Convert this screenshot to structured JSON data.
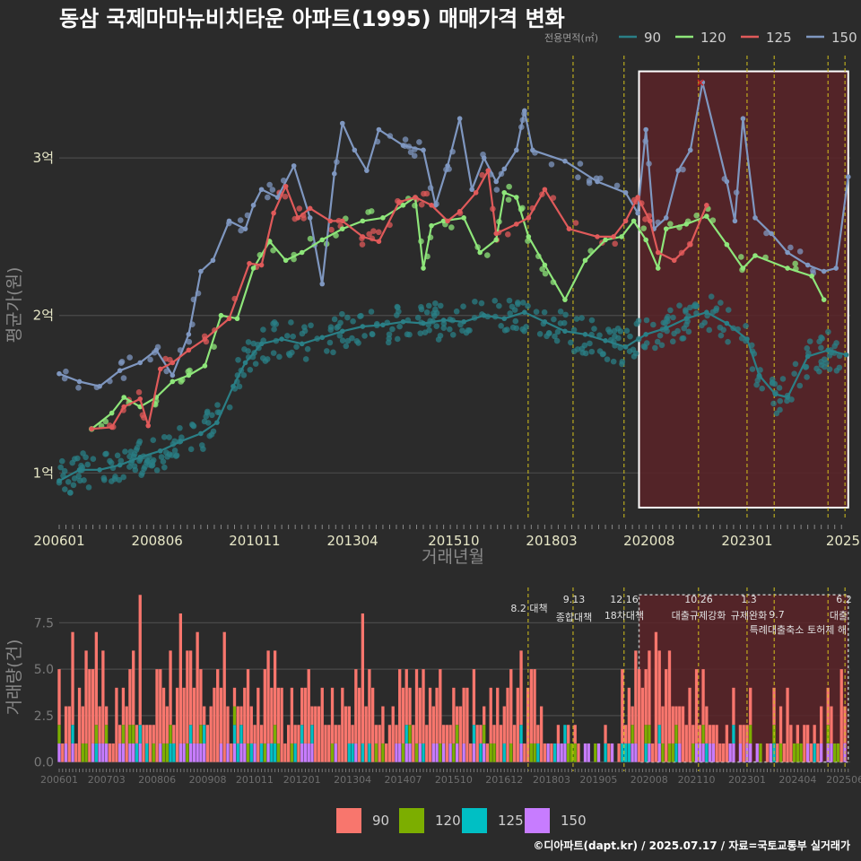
{
  "title": "동삼 국제마마뉴비치타운 아파트(1995) 매매가격 변화",
  "credit": "©디아파트(dapt.kr) / 2025.07.17 / 자료=국토교통부 실거래가",
  "colors": {
    "background": "#2b2b2b",
    "grid": "#4a4a4a",
    "policy_line": "#d4c21c",
    "highlight_fill": "#5a2328",
    "s90_line": "#2a7f86",
    "s120_line": "#8ee67a",
    "s125_line": "#e05a5a",
    "s150_line": "#7f97c0",
    "bar90": "#f8766d",
    "bar120": "#7cae00",
    "bar125": "#00bfc4",
    "bar150": "#c77cff"
  },
  "chart_data": [
    {
      "type": "line",
      "name": "price",
      "xlabel": "거래년월",
      "ylabel": "평균가(원)",
      "xlim": [
        2006.0,
        2025.55
      ],
      "ylim": [
        0.7,
        3.65
      ],
      "yticks": [
        {
          "v": 1,
          "label": "1억"
        },
        {
          "v": 2,
          "label": "2억"
        },
        {
          "v": 3,
          "label": "3억"
        }
      ],
      "xticks": [
        {
          "v": 2006.0,
          "label": "200601"
        },
        {
          "v": 2008.42,
          "label": "200806"
        },
        {
          "v": 2010.83,
          "label": "201011"
        },
        {
          "v": 2013.25,
          "label": "201304"
        },
        {
          "v": 2015.75,
          "label": "201510"
        },
        {
          "v": 2018.17,
          "label": "201803"
        },
        {
          "v": 2020.58,
          "label": "202008"
        },
        {
          "v": 2023.0,
          "label": "202301"
        },
        {
          "v": 2025.42,
          "label": "2025"
        }
      ],
      "legend_title": "전용면적(㎡)",
      "highlight": {
        "x0": 2020.33,
        "x1": 2025.5,
        "y0": 0.78,
        "y1": 3.55
      },
      "marker_x": {
        "x": 2021.85,
        "y": 3.48
      },
      "series": [
        {
          "name": "90",
          "color": "#2a7f86",
          "trend": [
            [
              2006.0,
              0.95
            ],
            [
              2006.5,
              1.02
            ],
            [
              2007.0,
              1.02
            ],
            [
              2007.5,
              1.05
            ],
            [
              2008.0,
              1.1
            ],
            [
              2008.5,
              1.14
            ],
            [
              2009.0,
              1.2
            ],
            [
              2009.5,
              1.25
            ],
            [
              2009.9,
              1.32
            ],
            [
              2010.3,
              1.55
            ],
            [
              2010.6,
              1.7
            ],
            [
              2011.0,
              1.82
            ],
            [
              2011.5,
              1.85
            ],
            [
              2012.0,
              1.82
            ],
            [
              2012.5,
              1.86
            ],
            [
              2013.0,
              1.9
            ],
            [
              2013.5,
              1.93
            ],
            [
              2014.0,
              1.94
            ],
            [
              2014.5,
              1.96
            ],
            [
              2015.0,
              1.95
            ],
            [
              2015.5,
              1.97
            ],
            [
              2016.0,
              1.96
            ],
            [
              2016.5,
              2.0
            ],
            [
              2017.0,
              1.98
            ],
            [
              2017.5,
              2.02
            ],
            [
              2018.0,
              1.96
            ],
            [
              2018.5,
              1.9
            ],
            [
              2019.0,
              1.88
            ],
            [
              2019.5,
              1.84
            ],
            [
              2020.0,
              1.8
            ],
            [
              2020.5,
              1.88
            ],
            [
              2021.0,
              1.92
            ],
            [
              2021.5,
              1.98
            ],
            [
              2022.0,
              2.02
            ],
            [
              2022.5,
              1.95
            ],
            [
              2023.0,
              1.85
            ],
            [
              2023.3,
              1.62
            ],
            [
              2023.7,
              1.5
            ],
            [
              2024.0,
              1.48
            ],
            [
              2024.5,
              1.74
            ],
            [
              2025.0,
              1.78
            ],
            [
              2025.45,
              1.75
            ]
          ]
        },
        {
          "name": "120",
          "color": "#8ee67a",
          "trend": [
            [
              2006.8,
              1.28
            ],
            [
              2007.3,
              1.38
            ],
            [
              2007.6,
              1.48
            ],
            [
              2008.0,
              1.42
            ],
            [
              2008.4,
              1.48
            ],
            [
              2008.8,
              1.58
            ],
            [
              2009.2,
              1.62
            ],
            [
              2009.6,
              1.68
            ],
            [
              2010.0,
              2.0
            ],
            [
              2010.4,
              1.98
            ],
            [
              2010.8,
              2.3
            ],
            [
              2011.2,
              2.47
            ],
            [
              2011.6,
              2.35
            ],
            [
              2012.0,
              2.4
            ],
            [
              2012.5,
              2.48
            ],
            [
              2013.0,
              2.55
            ],
            [
              2013.5,
              2.6
            ],
            [
              2014.0,
              2.62
            ],
            [
              2014.5,
              2.7
            ],
            [
              2014.8,
              2.75
            ],
            [
              2015.0,
              2.3
            ],
            [
              2015.2,
              2.57
            ],
            [
              2015.5,
              2.6
            ],
            [
              2016.0,
              2.62
            ],
            [
              2016.4,
              2.4
            ],
            [
              2016.8,
              2.48
            ],
            [
              2017.0,
              2.78
            ],
            [
              2017.3,
              2.75
            ],
            [
              2017.6,
              2.5
            ],
            [
              2018.0,
              2.32
            ],
            [
              2018.5,
              2.1
            ],
            [
              2019.0,
              2.35
            ],
            [
              2019.5,
              2.48
            ],
            [
              2019.9,
              2.5
            ],
            [
              2020.2,
              2.6
            ],
            [
              2020.5,
              2.48
            ],
            [
              2020.8,
              2.3
            ],
            [
              2021.0,
              2.55
            ],
            [
              2021.5,
              2.58
            ],
            [
              2022.0,
              2.63
            ],
            [
              2022.5,
              2.45
            ],
            [
              2022.9,
              2.3
            ],
            [
              2023.2,
              2.38
            ],
            [
              2024.0,
              2.3
            ],
            [
              2024.6,
              2.25
            ],
            [
              2024.9,
              2.1
            ]
          ]
        },
        {
          "name": "125",
          "color": "#e05a5a",
          "trend": [
            [
              2006.8,
              1.28
            ],
            [
              2007.3,
              1.29
            ],
            [
              2007.6,
              1.42
            ],
            [
              2008.0,
              1.47
            ],
            [
              2008.2,
              1.3
            ],
            [
              2008.5,
              1.66
            ],
            [
              2008.8,
              1.7
            ],
            [
              2009.2,
              1.78
            ],
            [
              2009.6,
              1.85
            ],
            [
              2010.2,
              1.98
            ],
            [
              2010.7,
              2.33
            ],
            [
              2011.0,
              2.32
            ],
            [
              2011.3,
              2.65
            ],
            [
              2011.6,
              2.82
            ],
            [
              2011.9,
              2.62
            ],
            [
              2012.2,
              2.68
            ],
            [
              2012.7,
              2.6
            ],
            [
              2013.0,
              2.6
            ],
            [
              2013.5,
              2.5
            ],
            [
              2013.9,
              2.47
            ],
            [
              2014.4,
              2.72
            ],
            [
              2014.8,
              2.75
            ],
            [
              2015.2,
              2.7
            ],
            [
              2015.6,
              2.6
            ],
            [
              2015.9,
              2.66
            ],
            [
              2016.3,
              2.78
            ],
            [
              2016.6,
              2.92
            ],
            [
              2016.8,
              2.52
            ],
            [
              2017.3,
              2.58
            ],
            [
              2017.6,
              2.62
            ],
            [
              2018.0,
              2.8
            ],
            [
              2018.6,
              2.55
            ],
            [
              2019.3,
              2.5
            ],
            [
              2019.7,
              2.5
            ],
            [
              2020.0,
              2.6
            ],
            [
              2020.3,
              2.75
            ],
            [
              2020.6,
              2.6
            ],
            [
              2020.8,
              2.4
            ],
            [
              2021.2,
              2.35
            ],
            [
              2021.6,
              2.45
            ],
            [
              2022.0,
              2.7
            ]
          ]
        },
        {
          "name": "150",
          "color": "#7f97c0",
          "trend": [
            [
              2006.0,
              1.63
            ],
            [
              2006.5,
              1.58
            ],
            [
              2007.0,
              1.55
            ],
            [
              2007.5,
              1.65
            ],
            [
              2008.0,
              1.7
            ],
            [
              2008.4,
              1.78
            ],
            [
              2008.8,
              1.62
            ],
            [
              2009.2,
              1.88
            ],
            [
              2009.5,
              2.28
            ],
            [
              2009.8,
              2.35
            ],
            [
              2010.2,
              2.6
            ],
            [
              2010.6,
              2.55
            ],
            [
              2010.8,
              2.7
            ],
            [
              2011.0,
              2.8
            ],
            [
              2011.4,
              2.75
            ],
            [
              2011.8,
              2.95
            ],
            [
              2012.2,
              2.62
            ],
            [
              2012.5,
              2.2
            ],
            [
              2012.8,
              2.9
            ],
            [
              2013.0,
              3.22
            ],
            [
              2013.3,
              3.05
            ],
            [
              2013.6,
              2.92
            ],
            [
              2013.9,
              3.18
            ],
            [
              2014.5,
              3.08
            ],
            [
              2015.0,
              3.05
            ],
            [
              2015.3,
              2.7
            ],
            [
              2015.6,
              2.95
            ],
            [
              2015.9,
              3.25
            ],
            [
              2016.2,
              2.8
            ],
            [
              2016.5,
              3.0
            ],
            [
              2016.8,
              2.85
            ],
            [
              2017.0,
              2.93
            ],
            [
              2017.3,
              3.05
            ],
            [
              2017.5,
              3.3
            ],
            [
              2017.7,
              3.05
            ],
            [
              2018.5,
              2.98
            ],
            [
              2019.3,
              2.85
            ],
            [
              2020.0,
              2.78
            ],
            [
              2020.3,
              2.65
            ],
            [
              2020.5,
              3.18
            ],
            [
              2020.7,
              2.55
            ],
            [
              2021.0,
              2.62
            ],
            [
              2021.3,
              2.92
            ],
            [
              2021.6,
              3.05
            ],
            [
              2021.9,
              3.48
            ],
            [
              2022.5,
              2.85
            ],
            [
              2022.7,
              2.6
            ],
            [
              2022.9,
              3.25
            ],
            [
              2023.2,
              2.62
            ],
            [
              2023.6,
              2.52
            ],
            [
              2024.0,
              2.4
            ],
            [
              2024.5,
              2.32
            ],
            [
              2024.9,
              2.28
            ],
            [
              2025.2,
              2.3
            ],
            [
              2025.5,
              2.88
            ]
          ]
        }
      ]
    },
    {
      "type": "bar",
      "name": "volume",
      "xlabel": "",
      "ylabel": "거래량(건)",
      "xlim": [
        2006.0,
        2025.55
      ],
      "ylim": [
        -0.5,
        9.4
      ],
      "yticks": [
        {
          "v": 0,
          "label": "0.0"
        },
        {
          "v": 2.5,
          "label": "2.5"
        },
        {
          "v": 5,
          "label": "5.0"
        },
        {
          "v": 7.5,
          "label": "7.5"
        }
      ],
      "xticks": [
        {
          "v": 2006.0,
          "label": "200601"
        },
        {
          "v": 2007.17,
          "label": "200703"
        },
        {
          "v": 2008.42,
          "label": "200806"
        },
        {
          "v": 2009.67,
          "label": "200908"
        },
        {
          "v": 2010.83,
          "label": "201011"
        },
        {
          "v": 2012.0,
          "label": "201201"
        },
        {
          "v": 2013.25,
          "label": "201304"
        },
        {
          "v": 2014.5,
          "label": "201407"
        },
        {
          "v": 2015.75,
          "label": "201510"
        },
        {
          "v": 2017.0,
          "label": "201612"
        },
        {
          "v": 2018.17,
          "label": "201803"
        },
        {
          "v": 2019.33,
          "label": "201905"
        },
        {
          "v": 2020.58,
          "label": "202008"
        },
        {
          "v": 2021.75,
          "label": "202110"
        },
        {
          "v": 2023.0,
          "label": "202301"
        },
        {
          "v": 2024.25,
          "label": "202404"
        },
        {
          "v": 2025.42,
          "label": "202506"
        }
      ],
      "highlight": {
        "x0": 2020.33,
        "x1": 2025.5,
        "y0": 0,
        "y1": 9.0
      },
      "legend": [
        "90",
        "120",
        "125",
        "150"
      ],
      "policies": [
        {
          "x": 2017.59,
          "date": "8.2",
          "label": "대책"
        },
        {
          "x": 2018.7,
          "date": "9.13",
          "label": "종합대책"
        },
        {
          "x": 2019.96,
          "date": "12.16",
          "label": "18차대책"
        },
        {
          "x": 2021.8,
          "date": "10.26",
          "label": "대출규제강화"
        },
        {
          "x": 2023.0,
          "date": "1.3",
          "label": "규제완화"
        },
        {
          "x": 2023.67,
          "date": "9.7",
          "label": "특례대출축소"
        },
        {
          "x": 2025.0,
          "date": "",
          "label": "토허제 해"
        },
        {
          "x": 2025.42,
          "date": "6.2",
          "label": "대출"
        }
      ]
    }
  ]
}
